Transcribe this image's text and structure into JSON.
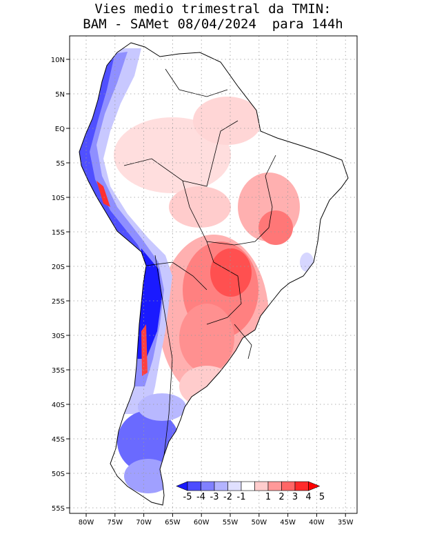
{
  "title": {
    "line1": "Vies medio trimestral da TMIN:",
    "line2": "BAM - SAMet 08/04/2024  para 144h"
  },
  "map": {
    "lon_ticks": [
      "80W",
      "75W",
      "70W",
      "65W",
      "60W",
      "55W",
      "50W",
      "45W",
      "40W",
      "35W"
    ],
    "lat_ticks": [
      "10N",
      "5N",
      "EQ",
      "5S",
      "10S",
      "15S",
      "20S",
      "25S",
      "30S",
      "35S",
      "40S",
      "45S",
      "50S",
      "55S"
    ],
    "lon_range": [
      -83,
      -34
    ],
    "lat_range": [
      12,
      -56
    ],
    "grid": true,
    "gridlines": "dotted"
  },
  "colorbar": {
    "labels": [
      "-5",
      "-4",
      "-3",
      "-2",
      "-1",
      "1",
      "2",
      "3",
      "4",
      "5"
    ],
    "colors": [
      "#1a1aff",
      "#4d4dff",
      "#8080ff",
      "#b3b3ff",
      "#e0e0ff",
      "#ffffff",
      "#ffcccc",
      "#ff9999",
      "#ff6666",
      "#ff2a2a",
      "#ff0000"
    ],
    "placement": "bottom-right inside map"
  }
}
